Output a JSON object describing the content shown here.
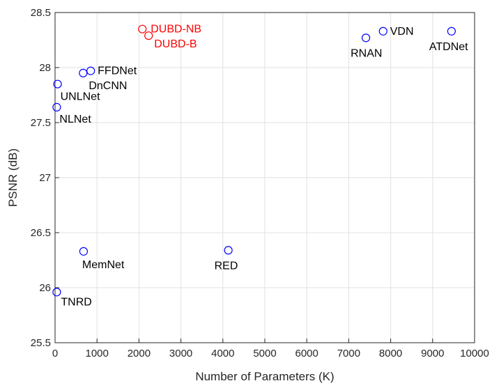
{
  "chart_data": {
    "type": "scatter",
    "xlabel": "Number of Parameters (K)",
    "ylabel": "PSNR (dB)",
    "xlim": [
      0,
      10000
    ],
    "ylim": [
      25.5,
      28.5
    ],
    "xticks": [
      "0",
      "1000",
      "2000",
      "3000",
      "4000",
      "5000",
      "6000",
      "7000",
      "8000",
      "9000",
      "10000"
    ],
    "yticks": [
      "25.5",
      "26",
      "26.5",
      "27",
      "27.5",
      "28",
      "28.5"
    ],
    "grid": true,
    "colors": {
      "baseline": "#0000ff",
      "proposed": "#ff0000",
      "text": "#000000"
    },
    "points": [
      {
        "label": "DUBD-NB",
        "x": 2080,
        "y": 28.35,
        "group": "proposed"
      },
      {
        "label": "DUBD-B",
        "x": 2230,
        "y": 28.29,
        "group": "proposed"
      },
      {
        "label": "FFDNet",
        "x": 850,
        "y": 27.97,
        "group": "baseline"
      },
      {
        "label": "DnCNN",
        "x": 670,
        "y": 27.95,
        "group": "baseline"
      },
      {
        "label": "UNLNet",
        "x": 60,
        "y": 27.85,
        "group": "baseline"
      },
      {
        "label": "NLNet",
        "x": 40,
        "y": 27.64,
        "group": "baseline"
      },
      {
        "label": "MemNet",
        "x": 680,
        "y": 26.33,
        "group": "baseline"
      },
      {
        "label": "RED",
        "x": 4130,
        "y": 26.34,
        "group": "baseline"
      },
      {
        "label": "TNRD",
        "x": 40,
        "y": 25.96,
        "group": "baseline"
      },
      {
        "label": "RNAN",
        "x": 7410,
        "y": 28.27,
        "group": "baseline"
      },
      {
        "label": "VDN",
        "x": 7820,
        "y": 28.33,
        "group": "baseline"
      },
      {
        "label": "ATDNet",
        "x": 9450,
        "y": 28.33,
        "group": "baseline"
      }
    ]
  }
}
